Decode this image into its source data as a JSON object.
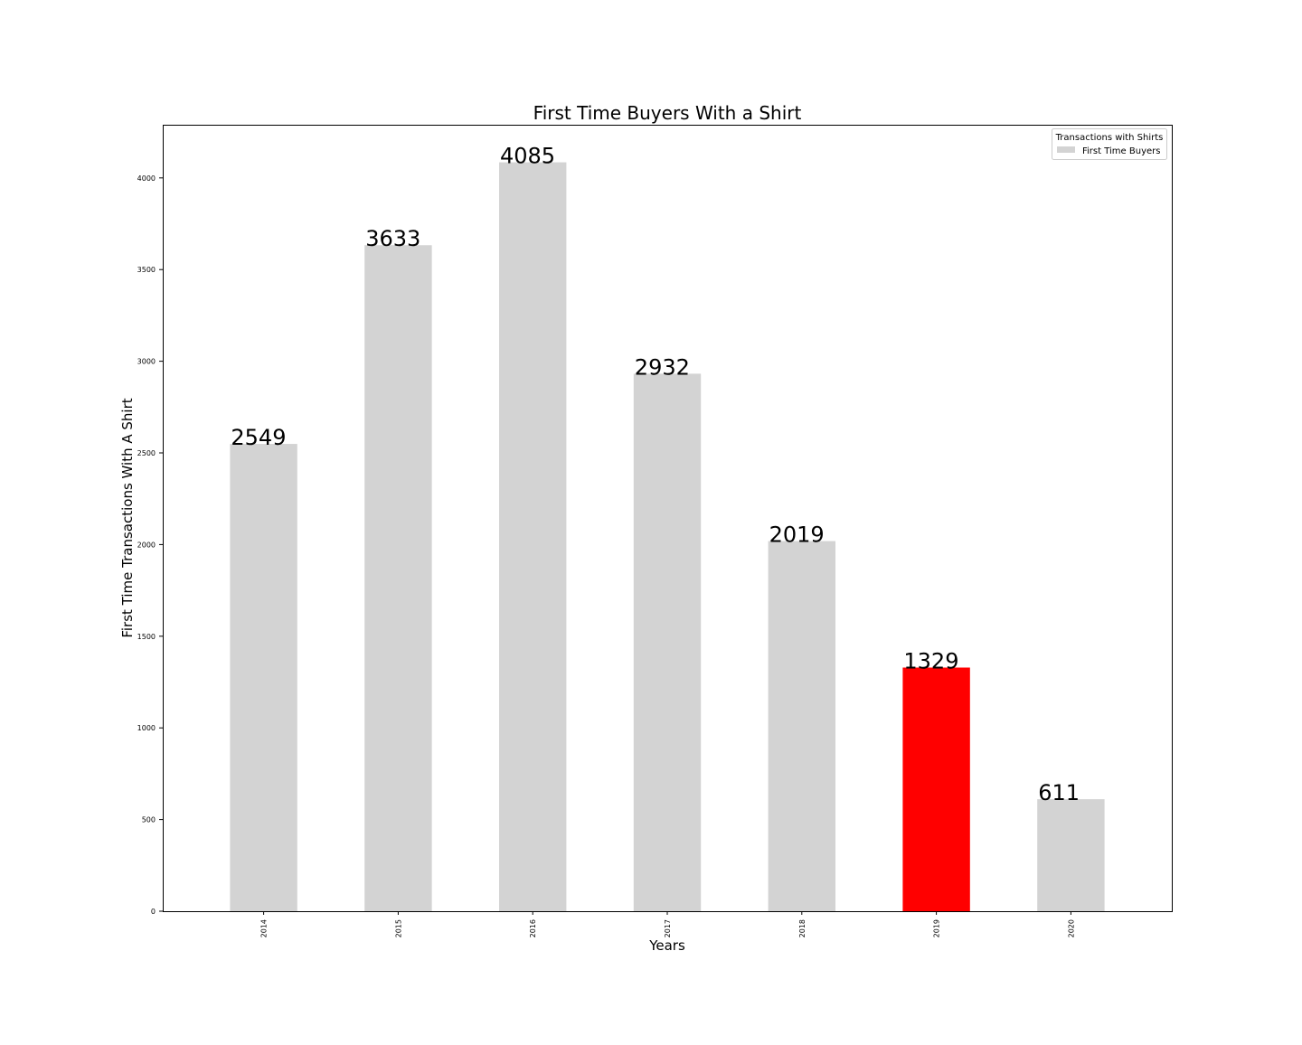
{
  "chart_data": {
    "type": "bar",
    "title": "First Time Buyers With a Shirt",
    "xlabel": "Years",
    "ylabel": "First Time Transactions With A Shirt",
    "categories": [
      "2014",
      "2015",
      "2016",
      "2017",
      "2018",
      "2019",
      "2020"
    ],
    "series": [
      {
        "name": "First Time Buyers",
        "values": [
          2549,
          3633,
          4085,
          2932,
          2019,
          1329,
          611
        ]
      }
    ],
    "data_labels": [
      "2549",
      "3633",
      "4085",
      "2932",
      "2019",
      "1329",
      "611"
    ],
    "highlight_category": "2019",
    "ylim": [
      0,
      4290
    ],
    "yticks": [
      0,
      500,
      1000,
      1500,
      2000,
      2500,
      3000,
      3500,
      4000
    ],
    "grid": false,
    "legend": {
      "title": "Transactions with Shirts",
      "placement": "top-right",
      "entries": [
        "First Time Buyers"
      ]
    },
    "colors": {
      "bar": "#d3d3d3",
      "highlight": "#ff0000",
      "axis": "#000000",
      "background": "#ffffff"
    }
  }
}
